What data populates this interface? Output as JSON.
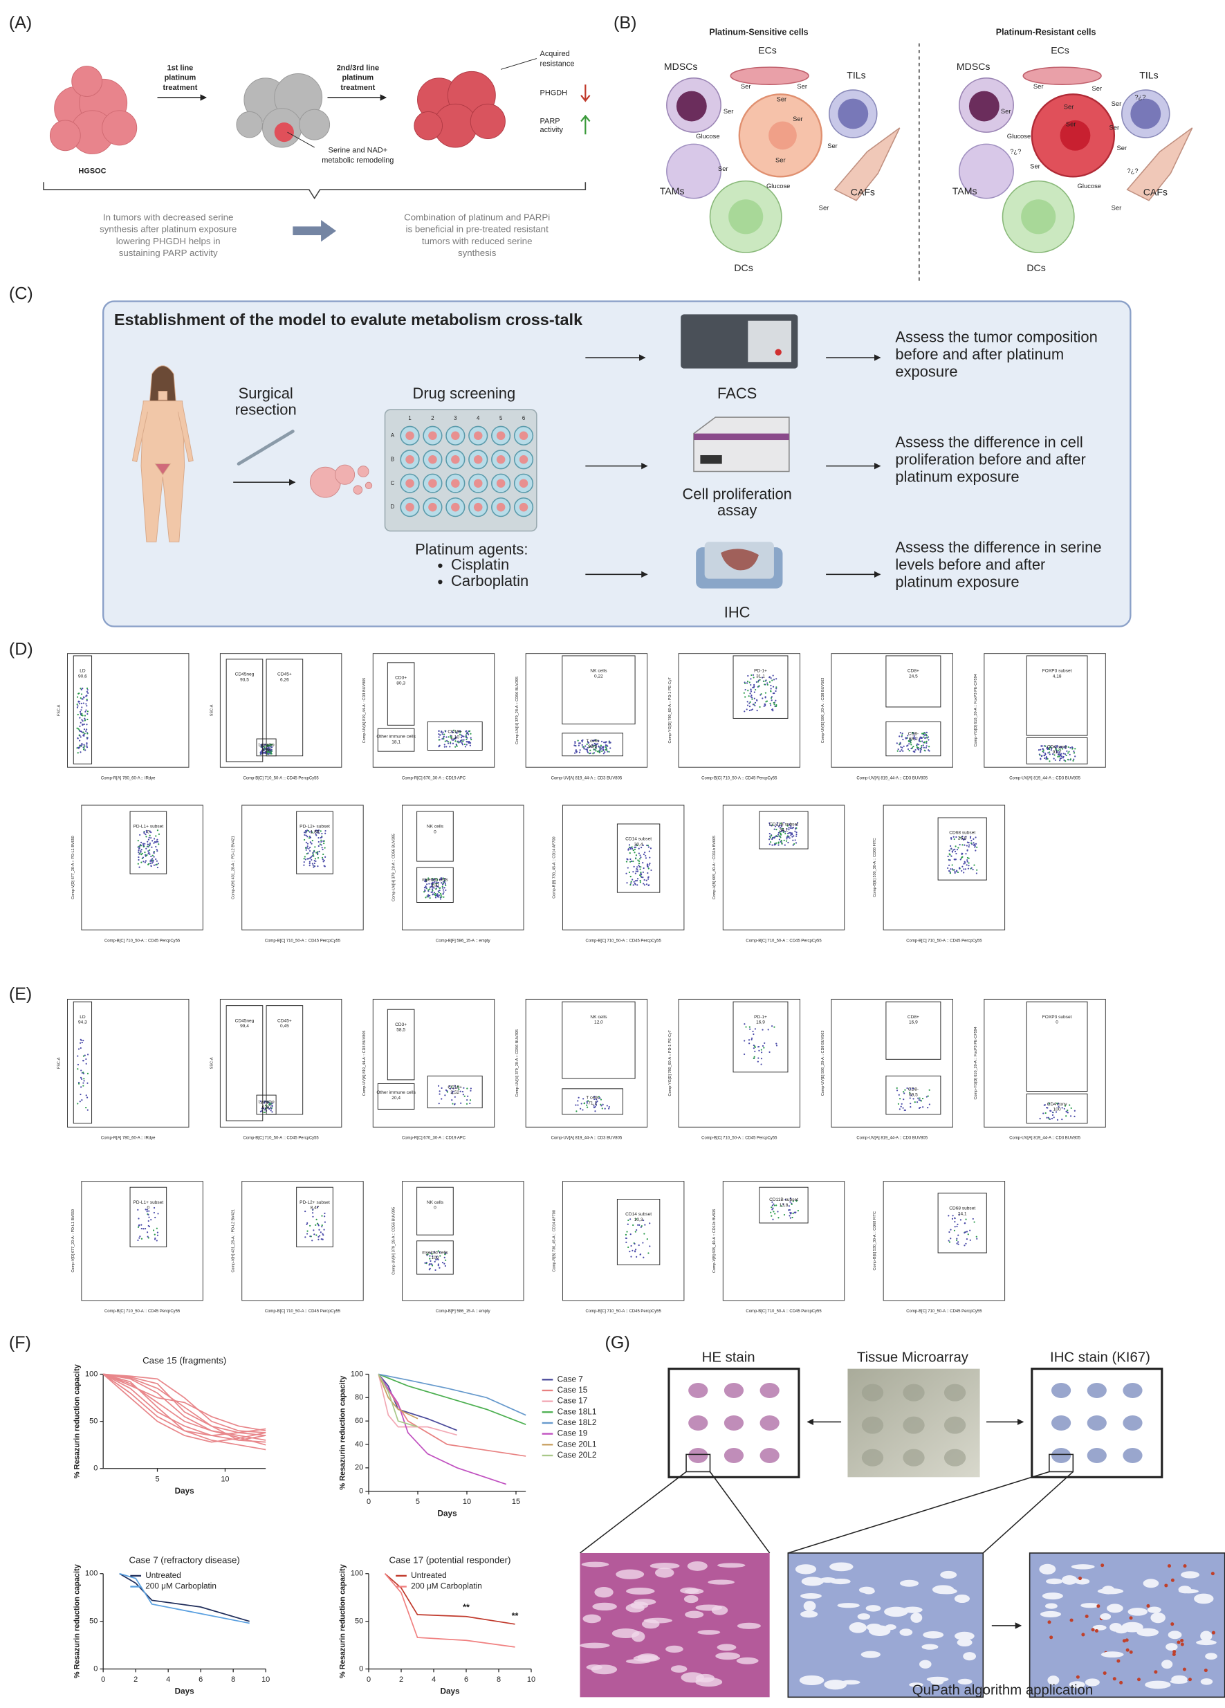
{
  "panel_a": {
    "label": "(A)",
    "hgsoc": "HGSOC",
    "step1": [
      "1st line",
      "platinum",
      "treatment"
    ],
    "step2": [
      "2nd/3rd line",
      "platinum",
      "treatment"
    ],
    "resistance": [
      "Acquired",
      "resistance"
    ],
    "phgdh": "PHGDH",
    "parp": [
      "PARP",
      "activity"
    ],
    "remodeling": [
      "Serine and NAD+",
      "metabolic remodeling"
    ],
    "left_note": [
      "In tumors with decreased serine",
      "synthesis after platinum exposure",
      "lowering PHGDH helps in",
      "sustaining PARP activity"
    ],
    "right_note": [
      "Combination of platinum and PARPi",
      "is beneficial in pre-treated resistant",
      "tumors with reduced serine",
      "synthesis"
    ]
  },
  "panel_b": {
    "label": "(B)",
    "sensitive": {
      "title": "Platinum-Sensitive cells",
      "cells": [
        "MDSCs",
        "ECs",
        "TILs",
        "TAMs",
        "CAFs",
        "DCs"
      ],
      "metabolites": [
        "Ser",
        "Ser",
        "Ser",
        "Ser",
        "Ser",
        "Glucose",
        "Ser",
        "Ser",
        "Glucose",
        "Ser",
        "Ser"
      ]
    },
    "resistant": {
      "title": "Platinum-Resistant cells",
      "cells": [
        "MDSCs",
        "ECs",
        "TILs",
        "TAMs",
        "CAFs",
        "DCs"
      ],
      "metabolites": [
        "Ser",
        "Ser",
        "Ser",
        "Ser",
        "Ser",
        "Ser",
        "Ser",
        "Glucose",
        "Ser",
        "Ser",
        "Glucose",
        "Ser",
        "?¿?",
        "?¿?",
        "?¿?"
      ]
    }
  },
  "panel_c": {
    "label": "(C)",
    "title": "Establishment of the model to evalute metabolism cross-talk",
    "surgical": [
      "Surgical",
      "resection"
    ],
    "screening": "Drug screening",
    "rows": [
      "A",
      "B",
      "C",
      "D"
    ],
    "cols": [
      "1",
      "2",
      "3",
      "4",
      "5",
      "6"
    ],
    "agents_title": "Platinum agents:",
    "agents": [
      "Cisplatin",
      "Carboplatin"
    ],
    "facs": "FACS",
    "prolif": [
      "Cell proliferation",
      "assay"
    ],
    "ihc": "IHC",
    "outcomes": [
      [
        "Assess the tumor composition",
        "before and after platinum",
        "exposure"
      ],
      [
        "Assess the difference in cell",
        "proliferation before and after",
        "platinum exposure"
      ],
      [
        "Assess the difference in serine",
        "levels before and after",
        "platinum exposure"
      ]
    ]
  },
  "panel_d": {
    "label": "(D)",
    "rows": [
      [
        {
          "y_label": "FSC-A",
          "x_label": "Comp-R[A] 780_60-A :: IRdye",
          "gates": [
            {
              "label": "LD",
              "value": "90,6"
            }
          ]
        },
        {
          "y_label": "SSC-A",
          "x_label": "Comp-B[C] 710_50-A :: CD45 PercpCy55",
          "gates": [
            {
              "label": "CD45neg",
              "value": "93,5"
            },
            {
              "label": "CD45+",
              "value": "6,26"
            },
            {
              "label": "Lympho",
              "value": "5,68"
            }
          ]
        },
        {
          "y_label": "Comp-UV[A] 819_44-A :: CD3 BUV805",
          "x_label": "Comp-R[C] 670_30-A :: CD19 APC",
          "gates": [
            {
              "label": "CD3+",
              "value": "80,3"
            },
            {
              "label": "Other immune cells",
              "value": "18,1"
            },
            {
              "label": "CD19+",
              "value": "1,10"
            }
          ]
        },
        {
          "y_label": "Comp-UV[H] 379_28-A :: CD56 BUV395",
          "x_label": "Comp-UV[A] 819_44-A :: CD3 BUV805",
          "gates": [
            {
              "label": "NK cells",
              "value": "0,22"
            },
            {
              "label": "T cells",
              "value": "98,9"
            }
          ]
        },
        {
          "y_label": "Comp-YG[D] 780_60-A :: PD-1 PE-Cy7",
          "x_label": "Comp-B[C] 710_50-A :: CD45 PercpCy55",
          "gates": [
            {
              "label": "PD-1+",
              "value": "31,1"
            }
          ]
        },
        {
          "y_label": "Comp-UV[E] 586_20-A :: CD8 BUV563",
          "x_label": "Comp-UV[A] 819_44-A :: CD3 BUV805",
          "gates": [
            {
              "label": "CD8+",
              "value": "24,5"
            },
            {
              "label": "CD8-",
              "value": "65,2"
            }
          ]
        },
        {
          "y_label": "Comp-YG[D] 610_20-A :: FoxP3 PE-CF594",
          "x_label": "Comp-UV[A] 819_44-A :: CD3 BUV805",
          "gates": [
            {
              "label": "FOXP3 subset",
              "value": "4,18"
            },
            {
              "label": "CD4 conv",
              "value": "91,7"
            }
          ]
        }
      ],
      [
        {
          "y_label": "Comp-V[D] 677_20-A :: PD-L1 BV650",
          "x_label": "Comp-B[C] 710_50-A :: CD45 PercpCy55",
          "gates": [
            {
              "label": "PD-L1+ subset",
              "value": "0"
            }
          ]
        },
        {
          "y_label": "Comp-V[H] 431_28-A :: PD-L2 BV421",
          "x_label": "Comp-B[C] 710_50-A :: CD45 PercpCy55",
          "gates": [
            {
              "label": "PD-L2+ subset",
              "value": "1,89"
            }
          ]
        },
        {
          "y_label": "Comp-UV[H] 379_28-A :: CD56 BUV395",
          "x_label": "Comp-B[F] 586_15-A :: empty",
          "gates": [
            {
              "label": "NK cells",
              "value": "0"
            },
            {
              "label": "myeloid cells",
              "value": "100"
            }
          ]
        },
        {
          "y_label": "Comp-R[B] 730_45-A :: CD14 AF700",
          "x_label": "Comp-B[C] 710_50-A :: CD45 PercpCy55",
          "gates": [
            {
              "label": "CD14 subset",
              "value": "30,4"
            }
          ]
        },
        {
          "y_label": "Comp-V[B] 605_40-A :: CD11b BV605",
          "x_label": "Comp-B[C] 710_50-A :: CD45 PercpCy55",
          "gates": [
            {
              "label": "CD11B subset",
              "value": "34,1"
            }
          ]
        },
        {
          "y_label": "Comp-B[E] 530_30-A :: CD68 FITC",
          "x_label": "Comp-B[C] 710_50-A :: CD45 PercpCy55",
          "gates": [
            {
              "label": "CD68 subset",
              "value": "26,8"
            }
          ]
        }
      ]
    ]
  },
  "panel_e": {
    "label": "(E)",
    "rows": [
      [
        {
          "y_label": "FSC-A",
          "x_label": "Comp-R[A] 780_60-A :: IRdye",
          "gates": [
            {
              "label": "LD",
              "value": "94,3"
            }
          ]
        },
        {
          "y_label": "SSC-A",
          "x_label": "Comp-B[C] 710_50-A :: CD45 PercpCy55",
          "gates": [
            {
              "label": "CD45neg",
              "value": "99,4"
            },
            {
              "label": "CD45+",
              "value": "0,45"
            },
            {
              "label": "Lympho",
              "value": "0,30"
            }
          ]
        },
        {
          "y_label": "Comp-UV[A] 819_44-A :: CD3 BUV805",
          "x_label": "Comp-R[C] 670_30-A :: CD19 APC",
          "gates": [
            {
              "label": "CD3+",
              "value": "58,5"
            },
            {
              "label": "Other immune cells",
              "value": "20,4"
            },
            {
              "label": "CD19+",
              "value": "3,52"
            }
          ]
        },
        {
          "y_label": "Comp-UV[H] 379_28-A :: CD56 BUV395",
          "x_label": "Comp-UV[A] 819_44-A :: CD3 BUV805",
          "gates": [
            {
              "label": "NK cells",
              "value": "12,0"
            },
            {
              "label": "T cells",
              "value": "71,1"
            }
          ]
        },
        {
          "y_label": "Comp-YG[D] 780_60-A :: PD-1 PE-Cy7",
          "x_label": "Comp-B[C] 710_50-A :: CD45 PercpCy55",
          "gates": [
            {
              "label": "PD-1+",
              "value": "16,9"
            }
          ]
        },
        {
          "y_label": "Comp-UV[E] 586_20-A :: CD8 BUV563",
          "x_label": "Comp-UV[A] 819_44-A :: CD3 BUV805",
          "gates": [
            {
              "label": "CD8+",
              "value": "16,9"
            },
            {
              "label": "CD8-",
              "value": "69,5"
            }
          ]
        },
        {
          "y_label": "Comp-YG[D] 610_20-A :: FoxP3 PE-CF594",
          "x_label": "Comp-UV[A] 819_44-A :: CD3 BUV805",
          "gates": [
            {
              "label": "FOXP3 subset",
              "value": "0"
            },
            {
              "label": "CD4 conv",
              "value": "100"
            }
          ]
        }
      ],
      [
        {
          "y_label": "Comp-V[D] 677_20-A :: PD-L1 BV650",
          "x_label": "Comp-B[C] 710_50-A :: CD45 PercpCy55",
          "gates": [
            {
              "label": "PD-L1+ subset",
              "value": "0"
            }
          ]
        },
        {
          "y_label": "Comp-V[H] 431_28-A :: PD-L2 BV421",
          "x_label": "Comp-B[C] 710_50-A :: CD45 PercpCy55",
          "gates": [
            {
              "label": "PD-L2+ subset",
              "value": "8,47"
            }
          ]
        },
        {
          "y_label": "Comp-UV[H] 379_28-A :: CD56 BUV395",
          "x_label": "Comp-B[F] 586_15-A :: empty",
          "gates": [
            {
              "label": "NK cells",
              "value": "0"
            },
            {
              "label": "myeloid cells",
              "value": "100"
            }
          ]
        },
        {
          "y_label": "Comp-R[B] 730_45-A :: CD14 AF700",
          "x_label": "Comp-B[C] 710_50-A :: CD45 PercpCy55",
          "gates": [
            {
              "label": "CD14 subset",
              "value": "10,3"
            }
          ]
        },
        {
          "y_label": "Comp-V[B] 605_40-A :: CD11b BV605",
          "x_label": "Comp-B[C] 710_50-A :: CD45 PercpCy55",
          "gates": [
            {
              "label": "CD11B subset",
              "value": "13,8"
            }
          ]
        },
        {
          "y_label": "Comp-B[E] 530_30-A :: CD68 FITC",
          "x_label": "Comp-B[C] 710_50-A :: CD45 PercpCy55",
          "gates": [
            {
              "label": "CD68 subset",
              "value": "24,1"
            }
          ]
        }
      ]
    ]
  },
  "panel_f": {
    "label": "(F)"
  },
  "chart_data": [
    {
      "type": "line",
      "title": "Case 15 (fragments)",
      "y_label": "% Resazurin reduction capacity",
      "x_label": "Days",
      "color": "#e8868a",
      "x": [
        1,
        3,
        5,
        7,
        9,
        11,
        13
      ],
      "xlim": [
        1,
        13
      ],
      "xticks": [
        5,
        10
      ],
      "ylim": [
        0,
        100
      ],
      "yticks": [
        0,
        50,
        100
      ],
      "series": [
        {
          "values": [
            100,
            97,
            90,
            60,
            45,
            38,
            35
          ]
        },
        {
          "values": [
            100,
            95,
            80,
            55,
            40,
            35,
            30
          ]
        },
        {
          "values": [
            100,
            90,
            70,
            50,
            40,
            33,
            25
          ]
        },
        {
          "values": [
            100,
            85,
            60,
            45,
            35,
            30,
            28
          ]
        },
        {
          "values": [
            100,
            98,
            95,
            75,
            50,
            40,
            38
          ]
        },
        {
          "values": [
            100,
            92,
            65,
            40,
            35,
            38,
            42
          ]
        },
        {
          "values": [
            100,
            88,
            75,
            70,
            55,
            45,
            40
          ]
        },
        {
          "values": [
            100,
            80,
            55,
            40,
            30,
            25,
            20
          ]
        },
        {
          "values": [
            100,
            96,
            85,
            65,
            45,
            30,
            35
          ]
        },
        {
          "values": [
            100,
            75,
            50,
            35,
            28,
            32,
            38
          ]
        }
      ]
    },
    {
      "type": "line",
      "y_label": "% Resazurin reduction capacity",
      "x_label": "Days",
      "xlim": [
        0,
        16
      ],
      "xticks": [
        0,
        5,
        10,
        15
      ],
      "ylim": [
        0,
        100
      ],
      "yticks": [
        0,
        20,
        40,
        60,
        80,
        100
      ],
      "legend": "right",
      "series": [
        {
          "name": "Case 7",
          "color": "#4b4b9b",
          "x": [
            1,
            2,
            3,
            6,
            9
          ],
          "values": [
            100,
            90,
            70,
            62,
            52
          ]
        },
        {
          "name": "Case 15",
          "color": "#e88080",
          "x": [
            1,
            4,
            8,
            12,
            16
          ],
          "values": [
            100,
            60,
            40,
            35,
            30
          ]
        },
        {
          "name": "Case 17",
          "color": "#f2a8b4",
          "x": [
            1,
            2,
            3,
            6,
            9
          ],
          "values": [
            100,
            65,
            55,
            55,
            48
          ]
        },
        {
          "name": "Case 18L1",
          "color": "#4caf50",
          "x": [
            1,
            4,
            8,
            12,
            16
          ],
          "values": [
            100,
            90,
            80,
            70,
            57
          ]
        },
        {
          "name": "Case 18L2",
          "color": "#6699cc",
          "x": [
            1,
            4,
            8,
            12,
            16
          ],
          "values": [
            100,
            95,
            88,
            80,
            65
          ]
        },
        {
          "name": "Case 19",
          "color": "#c050c0",
          "x": [
            1,
            3,
            4,
            6,
            9,
            14
          ],
          "values": [
            100,
            75,
            50,
            32,
            20,
            6
          ]
        },
        {
          "name": "Case 20L1",
          "color": "#c8a060",
          "x": [
            1,
            2,
            3,
            5
          ],
          "values": [
            100,
            80,
            70,
            62
          ]
        },
        {
          "name": "Case 20L2",
          "color": "#a8c888",
          "x": [
            1,
            2,
            3,
            5
          ],
          "values": [
            100,
            85,
            60,
            55
          ]
        }
      ]
    },
    {
      "type": "line",
      "title": "Case 7 (refractory disease)",
      "y_label": "% Resazurin reduction capacity",
      "x_label": "Days",
      "x": [
        1,
        2,
        3,
        6,
        9
      ],
      "xlim": [
        0,
        10
      ],
      "xticks": [
        0,
        2,
        4,
        6,
        8,
        10
      ],
      "ylim": [
        0,
        100
      ],
      "yticks": [
        0,
        50,
        100
      ],
      "legend": "upper right",
      "series": [
        {
          "name": "Untreated",
          "color": "#1f2d5a",
          "values": [
            100,
            90,
            72,
            65,
            50
          ]
        },
        {
          "name": "200 μM Carboplatin",
          "color": "#5aa0e0",
          "values": [
            100,
            95,
            68,
            58,
            48
          ]
        }
      ]
    },
    {
      "type": "line",
      "title": "Case 17 (potential responder)",
      "y_label": "% Resazurin reduction capacity",
      "x_label": "Days",
      "x": [
        1,
        2,
        3,
        6,
        9
      ],
      "xlim": [
        0,
        10
      ],
      "xticks": [
        0,
        2,
        4,
        6,
        8,
        10
      ],
      "ylim": [
        0,
        100
      ],
      "yticks": [
        0,
        50,
        100
      ],
      "legend": "upper right",
      "series": [
        {
          "name": "Untreated",
          "color": "#c0392b",
          "values": [
            100,
            85,
            57,
            55,
            47
          ]
        },
        {
          "name": "200 μM Carboplatin",
          "color": "#f08080",
          "values": [
            100,
            80,
            33,
            30,
            23
          ]
        }
      ],
      "annotations": [
        {
          "text": "**",
          "x": 6,
          "y": 64
        },
        {
          "text": "**",
          "x": 9,
          "y": 55
        }
      ]
    }
  ],
  "panel_g": {
    "label": "(G)",
    "he": "HE stain",
    "tma": "Tissue Microarray",
    "ihc": "IHC stain (KI67)",
    "caption": "QuPath algorithm application"
  }
}
